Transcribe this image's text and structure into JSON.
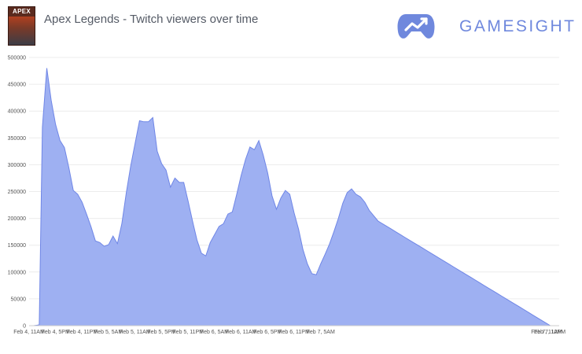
{
  "header": {
    "title": "Apex Legends - Twitch viewers over time",
    "cover_text": "APEX",
    "brand_name": "GAMESIGHT",
    "brand_icon": "gamepad-trend-icon"
  },
  "colors": {
    "area_fill": "#9eb0f2",
    "area_stroke": "#6f86e6",
    "brand": "#6f88dd",
    "grid": "#ececec"
  },
  "chart_data": {
    "type": "area",
    "title": "Apex Legends - Twitch viewers over time",
    "xlabel": "",
    "ylabel": "",
    "ylim": [
      0,
      500000
    ],
    "grid": true,
    "yticks": [
      0,
      50000,
      100000,
      150000,
      200000,
      250000,
      300000,
      350000,
      400000,
      450000,
      500000
    ],
    "xtick_labels": [
      "Feb 4, 11AM",
      "Feb 4, 5PM",
      "Feb 4, 11PM",
      "Feb 5, 5AM",
      "Feb 5, 11AM",
      "Feb 5, 5PM",
      "Feb 5, 11PM",
      "Feb 6, 5AM",
      "Feb 6, 11AM",
      "Feb 6, 5PM",
      "Feb 6, 11PM",
      "Feb 7, 5AM",
      "Feb 7, 11AM",
      "Feb 7, 12PM"
    ],
    "series": [
      {
        "x_hours": [
          0,
          1,
          2,
          2.3,
          3,
          4,
          5,
          6,
          7,
          8,
          9,
          10,
          11,
          12,
          13,
          14,
          15,
          16,
          17,
          18,
          19,
          20,
          21,
          22,
          23,
          24,
          25,
          26,
          27,
          28,
          29,
          30,
          31,
          32,
          33,
          34,
          35,
          36,
          37,
          38,
          39,
          40,
          41,
          42,
          43,
          44,
          45,
          46,
          47,
          48,
          49,
          50,
          51,
          52,
          53,
          54,
          55,
          56,
          57,
          58,
          59,
          60,
          61,
          62,
          63,
          64,
          65,
          66,
          67,
          68,
          69,
          70,
          71,
          72,
          73,
          74,
          75,
          76,
          77,
          78,
          79,
          80,
          81,
          82,
          83,
          84,
          85,
          86,
          87,
          88,
          89,
          90,
          91,
          92,
          93,
          94,
          95,
          96,
          97,
          98,
          99,
          100,
          101,
          102,
          103,
          104,
          105,
          106,
          107,
          108,
          109,
          110,
          111,
          112,
          113,
          114,
          115,
          116,
          117,
          118,
          119,
          120,
          121,
          122,
          123,
          124,
          125,
          126,
          127,
          128
        ],
        "values": [
          0,
          0,
          1000,
          2000,
          370000,
          480000,
          420000,
          375000,
          345000,
          332000,
          295000,
          252000,
          245000,
          230000,
          208000,
          185000,
          158000,
          155000,
          148000,
          151000,
          167000,
          153000,
          190000,
          248000,
          298000,
          340000,
          382000,
          380000,
          380000,
          388000,
          325000,
          302000,
          290000,
          258000,
          275000,
          267000,
          267000,
          232000,
          195000,
          160000,
          135000,
          130000,
          155000,
          170000,
          185000,
          190000,
          208000,
          212000,
          245000,
          280000,
          310000,
          333000,
          328000,
          345000,
          318000,
          285000,
          242000,
          217000,
          238000,
          252000,
          245000,
          210000,
          180000,
          142000,
          115000,
          97000,
          95000,
          115000,
          133000,
          152000,
          175000,
          200000,
          228000,
          248000,
          255000,
          245000,
          240000,
          230000,
          215000,
          205000,
          195000,
          190000,
          185000,
          180000,
          175000,
          170000,
          165000,
          160000,
          155000,
          150000,
          145000,
          140000,
          135000,
          130000,
          125000,
          120000,
          115000,
          110000,
          105000,
          100000,
          95000,
          90000,
          85000,
          80000,
          75000,
          70000,
          65000,
          60000,
          55000,
          50000,
          45000,
          40000,
          35000,
          30000,
          25000,
          20000,
          15000,
          10000,
          5000,
          0,
          0,
          0,
          0,
          0,
          0,
          0,
          0,
          0,
          0,
          0
        ]
      }
    ]
  }
}
